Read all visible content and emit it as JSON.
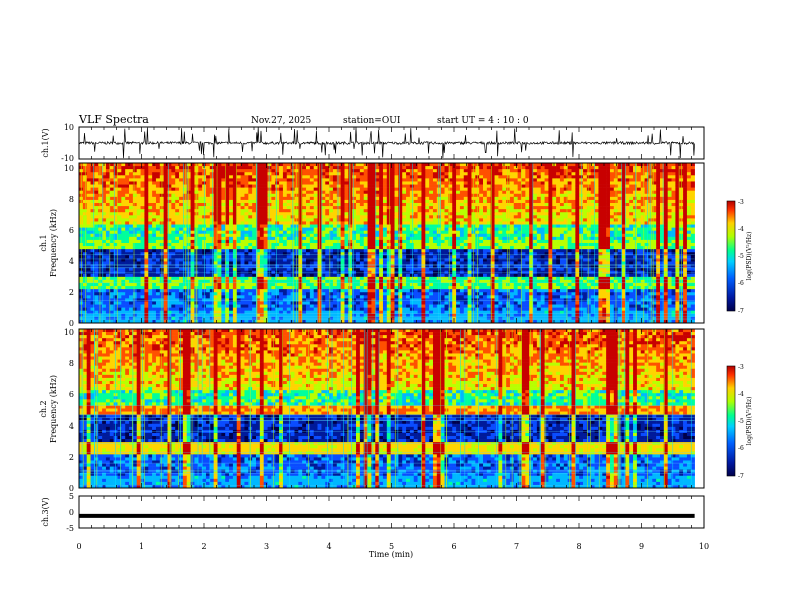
{
  "header": {
    "title": "VLF Spectra",
    "date": "Nov.27, 2025",
    "station": "station=OUI",
    "start_ut": "start UT =  4 : 10 : 0"
  },
  "colors": {
    "spectrum": [
      "#00004a",
      "#001a9a",
      "#0a4cff",
      "#00b8ff",
      "#00ff9c",
      "#b8ff00",
      "#ffd400",
      "#ff5000",
      "#c80000"
    ]
  },
  "chart_data": [
    {
      "type": "line",
      "name": "ch1-waveform",
      "ylabel": "ch.1(V)",
      "ylim": [
        -10,
        10
      ],
      "yticks": [
        "10",
        "-10"
      ],
      "xlim": [
        0,
        10
      ],
      "note": "noisy waveform around 0 V with sferic spikes"
    },
    {
      "type": "heatmap",
      "name": "ch1-spectrogram",
      "ylabel": "ch.1 Frequency (kHz)",
      "ylabel_lines": [
        "ch.1",
        "Frequency (kHz)"
      ],
      "ylim": [
        0,
        10
      ],
      "yticks": [
        "0",
        "2",
        "4",
        "6",
        "8",
        "10"
      ],
      "xlim": [
        0,
        9.85
      ],
      "colorbar": {
        "label": "log(PSD)(V²/Hz)",
        "range": [
          -7,
          -3
        ],
        "ticks": [
          "-3",
          "-4",
          "-5",
          "-6",
          "-7"
        ]
      }
    },
    {
      "type": "heatmap",
      "name": "ch2-spectrogram",
      "ylabel": "ch.2 Frequency (kHz)",
      "ylabel_lines": [
        "ch.2",
        "Frequency (kHz)"
      ],
      "ylim": [
        0,
        10
      ],
      "yticks": [
        "0",
        "2",
        "4",
        "6",
        "8",
        "10"
      ],
      "xlim": [
        0,
        9.85
      ],
      "colorbar": {
        "label": "log(PSD)(V²/Hz)",
        "range": [
          -7,
          -3
        ],
        "ticks": [
          "-3",
          "-4",
          "-5",
          "-6",
          "-7"
        ]
      }
    },
    {
      "type": "line",
      "name": "ch3-waveform",
      "ylabel": "ch.3(V)",
      "ylim": [
        -5,
        5
      ],
      "yticks": [
        "5",
        "0",
        "-5"
      ],
      "values_constant": -1.2,
      "xlim": [
        0,
        10
      ]
    }
  ],
  "xaxis": {
    "label": "Time (min)",
    "range": [
      0,
      10
    ],
    "ticks": [
      "0",
      "1",
      "2",
      "3",
      "4",
      "5",
      "6",
      "7",
      "8",
      "9",
      "10"
    ]
  }
}
